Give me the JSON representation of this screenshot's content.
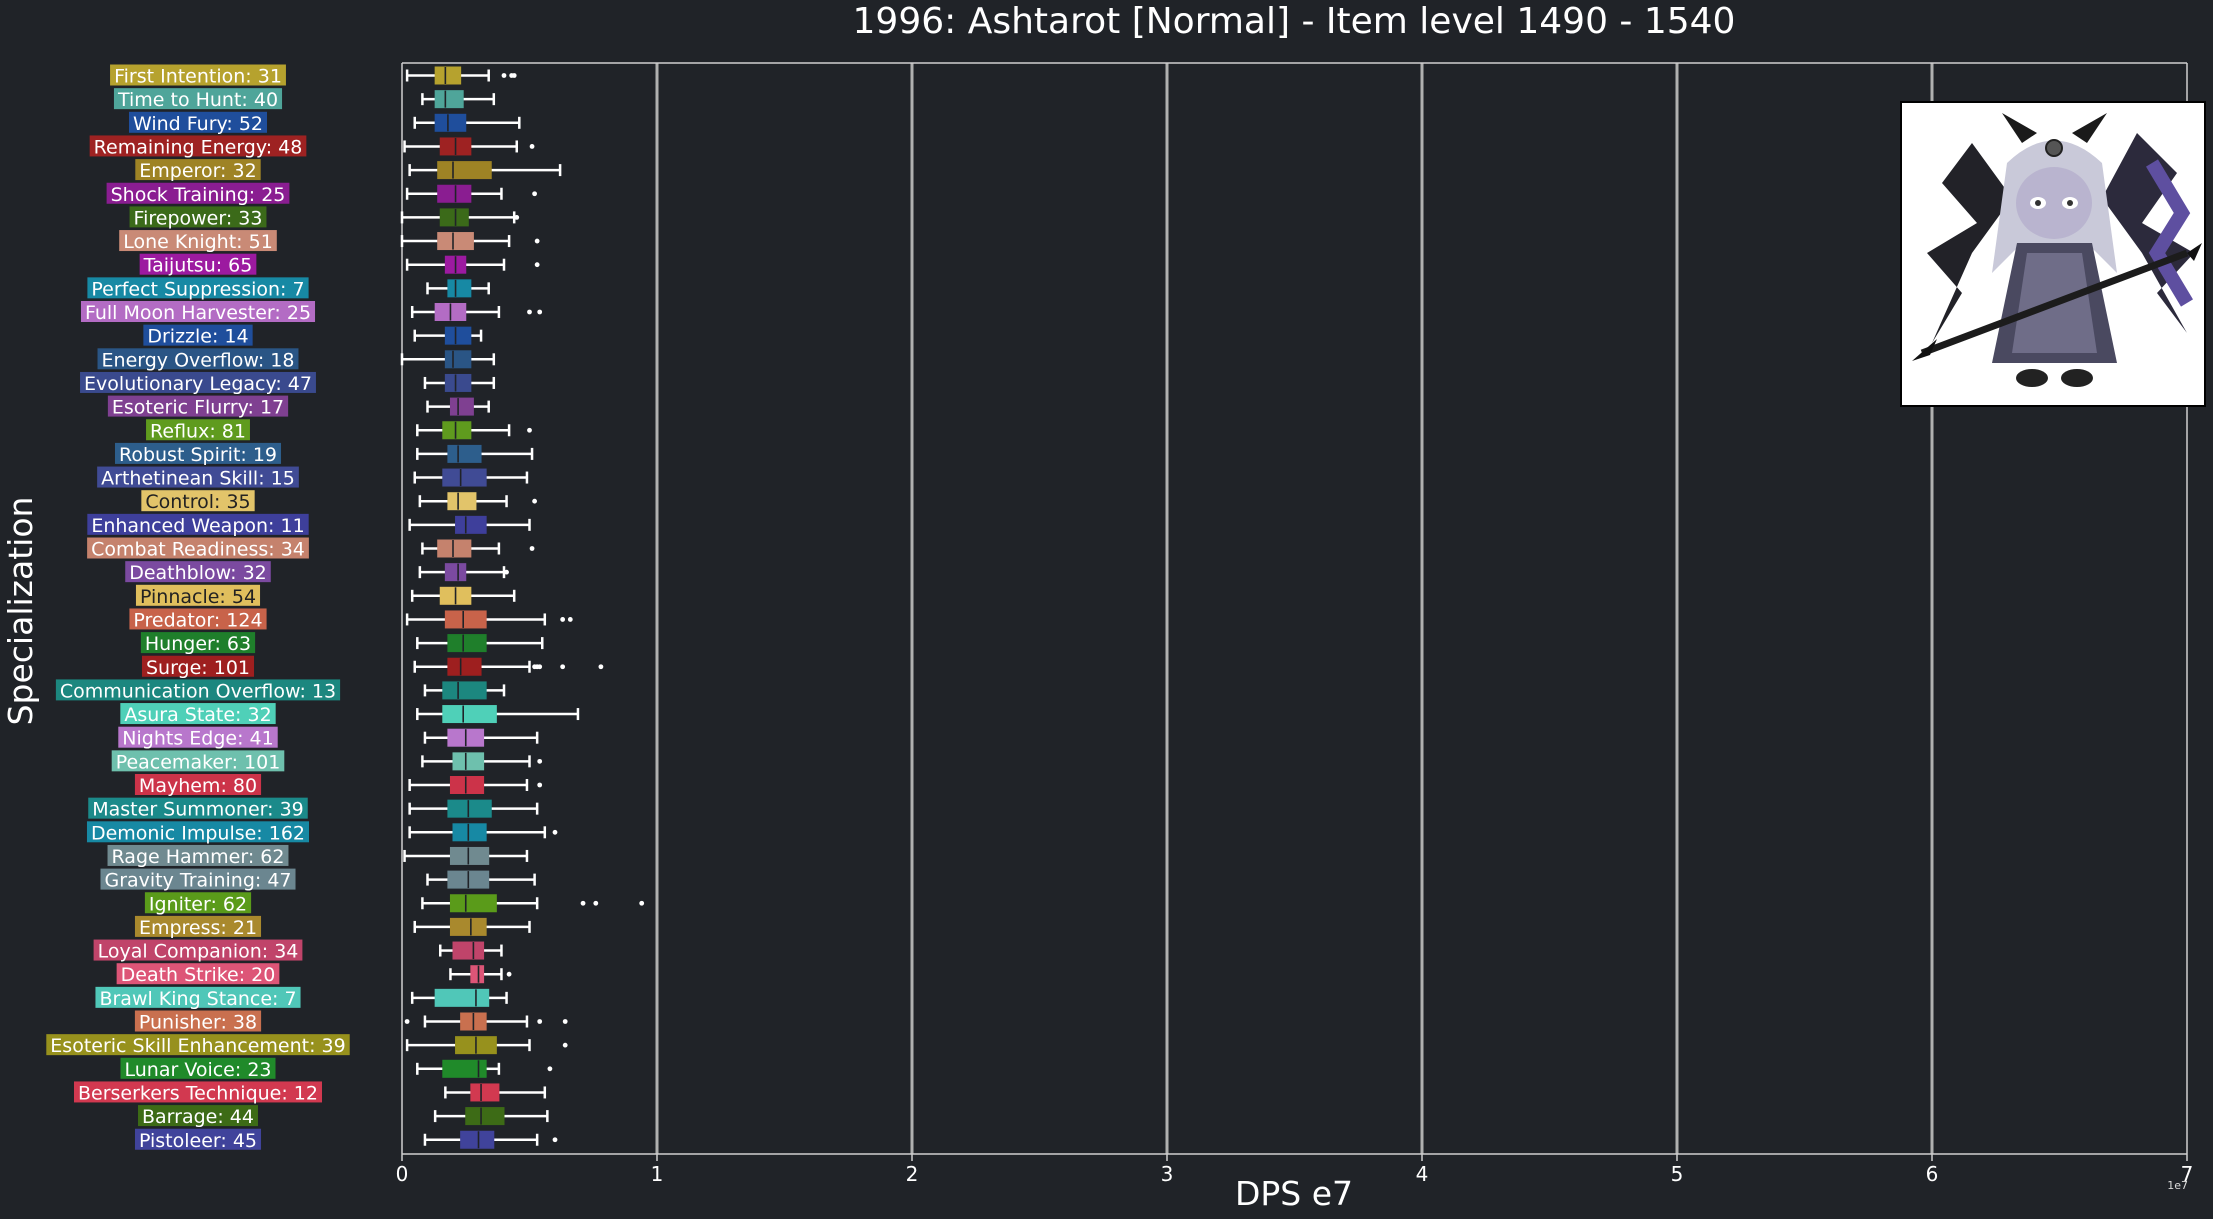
{
  "chart_data": {
    "type": "boxplot",
    "orientation": "horizontal",
    "title": "1996: Ashtarot [Normal] - Item level 1490 - 1540",
    "xlabel": "DPS e7",
    "ylabel": "Specialization",
    "scale_note": "1e7",
    "xlim": [
      0,
      7
    ],
    "x_ticks": [
      "0",
      "1",
      "2",
      "3",
      "4",
      "5",
      "6",
      "7"
    ],
    "grid": "vertical gridlines at each major x tick",
    "legend": "none",
    "categories": [
      {
        "label": "First Intention: 31",
        "color": "#b6a22e",
        "stats": [
          0.02,
          0.13,
          0.17,
          0.23,
          0.34
        ],
        "outliers": [
          0.4,
          0.43,
          0.44
        ]
      },
      {
        "label": "Time to Hunt: 40",
        "color": "#4fa59a",
        "stats": [
          0.08,
          0.13,
          0.17,
          0.24,
          0.36
        ],
        "outliers": []
      },
      {
        "label": "Wind Fury: 52",
        "color": "#1f4e9c",
        "stats": [
          0.05,
          0.13,
          0.18,
          0.25,
          0.46
        ],
        "outliers": []
      },
      {
        "label": "Remaining Energy: 48",
        "color": "#9e2222",
        "stats": [
          0.01,
          0.15,
          0.21,
          0.27,
          0.45
        ],
        "outliers": [
          0.51
        ]
      },
      {
        "label": "Emperor: 32",
        "color": "#9e8325",
        "stats": [
          0.03,
          0.14,
          0.2,
          0.35,
          0.62
        ],
        "outliers": []
      },
      {
        "label": "Shock Training: 25",
        "color": "#8a1d91",
        "stats": [
          0.02,
          0.14,
          0.21,
          0.27,
          0.39
        ],
        "outliers": [
          0.52
        ]
      },
      {
        "label": "Firepower: 33",
        "color": "#3b6a19",
        "stats": [
          0.0,
          0.15,
          0.21,
          0.26,
          0.44
        ],
        "outliers": [
          0.45
        ]
      },
      {
        "label": "Lone Knight: 51",
        "color": "#c98a76",
        "stats": [
          0.0,
          0.14,
          0.2,
          0.28,
          0.42
        ],
        "outliers": [
          0.53
        ]
      },
      {
        "label": "Taijutsu: 65",
        "color": "#9c1aa0",
        "stats": [
          0.02,
          0.17,
          0.21,
          0.25,
          0.4
        ],
        "outliers": [
          0.53
        ]
      },
      {
        "label": "Perfect Suppression: 7",
        "color": "#1789a4",
        "stats": [
          0.1,
          0.18,
          0.21,
          0.27,
          0.34
        ],
        "outliers": []
      },
      {
        "label": "Full Moon Harvester: 25",
        "color": "#b36cc4",
        "stats": [
          0.04,
          0.13,
          0.19,
          0.25,
          0.38
        ],
        "outliers": [
          0.5,
          0.54
        ]
      },
      {
        "label": "Drizzle: 14",
        "color": "#1f4e9c",
        "stats": [
          0.05,
          0.17,
          0.21,
          0.27,
          0.31
        ],
        "outliers": []
      },
      {
        "label": "Energy Overflow: 18",
        "color": "#2a5585",
        "stats": [
          0.0,
          0.17,
          0.2,
          0.27,
          0.36
        ],
        "outliers": []
      },
      {
        "label": "Evolutionary Legacy: 47",
        "color": "#3a4a8e",
        "stats": [
          0.09,
          0.17,
          0.21,
          0.27,
          0.36
        ],
        "outliers": []
      },
      {
        "label": "Esoteric Flurry: 17",
        "color": "#7f4091",
        "stats": [
          0.1,
          0.19,
          0.22,
          0.28,
          0.34
        ],
        "outliers": []
      },
      {
        "label": "Reflux: 81",
        "color": "#5f9b1e",
        "stats": [
          0.06,
          0.16,
          0.21,
          0.27,
          0.42
        ],
        "outliers": [
          0.5
        ]
      },
      {
        "label": "Robust Spirit: 19",
        "color": "#2d5e8c",
        "stats": [
          0.06,
          0.18,
          0.22,
          0.31,
          0.51
        ],
        "outliers": []
      },
      {
        "label": "Arthetinean Skill: 15",
        "color": "#404b95",
        "stats": [
          0.05,
          0.16,
          0.23,
          0.33,
          0.49
        ],
        "outliers": []
      },
      {
        "label": "Control: 35",
        "color": "#e2c46a",
        "stats": [
          0.07,
          0.18,
          0.22,
          0.29,
          0.41
        ],
        "outliers": [
          0.52
        ]
      },
      {
        "label": "Enhanced Weapon: 11",
        "color": "#3e3f9b",
        "stats": [
          0.03,
          0.21,
          0.25,
          0.33,
          0.5
        ],
        "outliers": []
      },
      {
        "label": "Combat Readiness: 34",
        "color": "#c5826d",
        "stats": [
          0.08,
          0.14,
          0.2,
          0.27,
          0.38
        ],
        "outliers": [
          0.51
        ]
      },
      {
        "label": "Deathblow: 32",
        "color": "#7b4aa0",
        "stats": [
          0.07,
          0.17,
          0.22,
          0.25,
          0.4
        ],
        "outliers": [
          0.41
        ]
      },
      {
        "label": "Pinnacle: 54",
        "color": "#e0bf5d",
        "stats": [
          0.04,
          0.15,
          0.21,
          0.27,
          0.44
        ],
        "outliers": []
      },
      {
        "label": "Predator: 124",
        "color": "#c8634a",
        "stats": [
          0.02,
          0.17,
          0.24,
          0.33,
          0.56
        ],
        "outliers": [
          0.63,
          0.66
        ]
      },
      {
        "label": "Hunger: 63",
        "color": "#1f7f2b",
        "stats": [
          0.06,
          0.18,
          0.24,
          0.33,
          0.55
        ],
        "outliers": []
      },
      {
        "label": "Surge: 101",
        "color": "#9e1f1f",
        "stats": [
          0.05,
          0.18,
          0.23,
          0.31,
          0.5
        ],
        "outliers": [
          0.52,
          0.53,
          0.54,
          0.63,
          0.78
        ]
      },
      {
        "label": "Communication Overflow: 13",
        "color": "#1c877f",
        "stats": [
          0.09,
          0.16,
          0.22,
          0.33,
          0.4
        ],
        "outliers": []
      },
      {
        "label": "Asura State: 32",
        "color": "#4fd0b8",
        "stats": [
          0.06,
          0.16,
          0.24,
          0.37,
          0.69
        ],
        "outliers": []
      },
      {
        "label": "Nights Edge: 41",
        "color": "#b877cc",
        "stats": [
          0.09,
          0.18,
          0.25,
          0.32,
          0.53
        ],
        "outliers": []
      },
      {
        "label": "Peacemaker: 101",
        "color": "#6ec0ad",
        "stats": [
          0.08,
          0.2,
          0.25,
          0.32,
          0.5
        ],
        "outliers": [
          0.54
        ]
      },
      {
        "label": "Mayhem: 80",
        "color": "#cc3349",
        "stats": [
          0.03,
          0.19,
          0.25,
          0.32,
          0.49
        ],
        "outliers": [
          0.54
        ]
      },
      {
        "label": "Master Summoner: 39",
        "color": "#1b8a8a",
        "stats": [
          0.03,
          0.18,
          0.26,
          0.35,
          0.53
        ],
        "outliers": []
      },
      {
        "label": "Demonic Impulse: 162",
        "color": "#1789a4",
        "stats": [
          0.03,
          0.2,
          0.26,
          0.33,
          0.56
        ],
        "outliers": [
          0.6
        ]
      },
      {
        "label": "Rage Hammer: 62",
        "color": "#708a90",
        "stats": [
          0.01,
          0.19,
          0.26,
          0.34,
          0.49
        ],
        "outliers": []
      },
      {
        "label": "Gravity Training: 47",
        "color": "#6b8690",
        "stats": [
          0.1,
          0.18,
          0.26,
          0.34,
          0.52
        ],
        "outliers": []
      },
      {
        "label": "Igniter: 62",
        "color": "#5a9b1a",
        "stats": [
          0.08,
          0.19,
          0.25,
          0.37,
          0.53
        ],
        "outliers": [
          0.71,
          0.76,
          0.94
        ]
      },
      {
        "label": "Empress: 21",
        "color": "#a9892d",
        "stats": [
          0.05,
          0.19,
          0.27,
          0.33,
          0.5
        ],
        "outliers": []
      },
      {
        "label": "Loyal Companion: 34",
        "color": "#c0446a",
        "stats": [
          0.15,
          0.2,
          0.28,
          0.32,
          0.39
        ],
        "outliers": []
      },
      {
        "label": "Death Strike: 20",
        "color": "#dd5577",
        "stats": [
          0.19,
          0.27,
          0.3,
          0.32,
          0.39
        ],
        "outliers": [
          0.42
        ]
      },
      {
        "label": "Brawl King Stance: 7",
        "color": "#50c7b8",
        "stats": [
          0.04,
          0.13,
          0.29,
          0.34,
          0.41
        ],
        "outliers": []
      },
      {
        "label": "Punisher: 38",
        "color": "#c9704f",
        "stats": [
          0.09,
          0.23,
          0.28,
          0.33,
          0.49
        ],
        "outliers": [
          0.02,
          0.54,
          0.64
        ]
      },
      {
        "label": "Esoteric Skill Enhancement: 39",
        "color": "#97911d",
        "stats": [
          0.02,
          0.21,
          0.29,
          0.37,
          0.5
        ],
        "outliers": [
          0.64
        ]
      },
      {
        "label": "Lunar Voice: 23",
        "color": "#208a2a",
        "stats": [
          0.06,
          0.16,
          0.3,
          0.33,
          0.38
        ],
        "outliers": [
          0.58
        ]
      },
      {
        "label": "Berserkers Technique: 12",
        "color": "#d23950",
        "stats": [
          0.17,
          0.27,
          0.31,
          0.38,
          0.56
        ],
        "outliers": []
      },
      {
        "label": "Barrage: 44",
        "color": "#3d6b16",
        "stats": [
          0.13,
          0.25,
          0.31,
          0.4,
          0.57
        ],
        "outliers": []
      },
      {
        "label": "Pistoleer: 45",
        "color": "#40439b",
        "stats": [
          0.09,
          0.23,
          0.3,
          0.36,
          0.53
        ],
        "outliers": [
          0.6
        ]
      }
    ]
  },
  "portrait": {
    "subject": "chibi dark-armored character with horns, cape and spear",
    "icon": "character-portrait"
  },
  "colors": {
    "background": "#202328",
    "grid": "#b0b0b0",
    "text": "#ffffff",
    "axes": "#d0d0d0"
  }
}
